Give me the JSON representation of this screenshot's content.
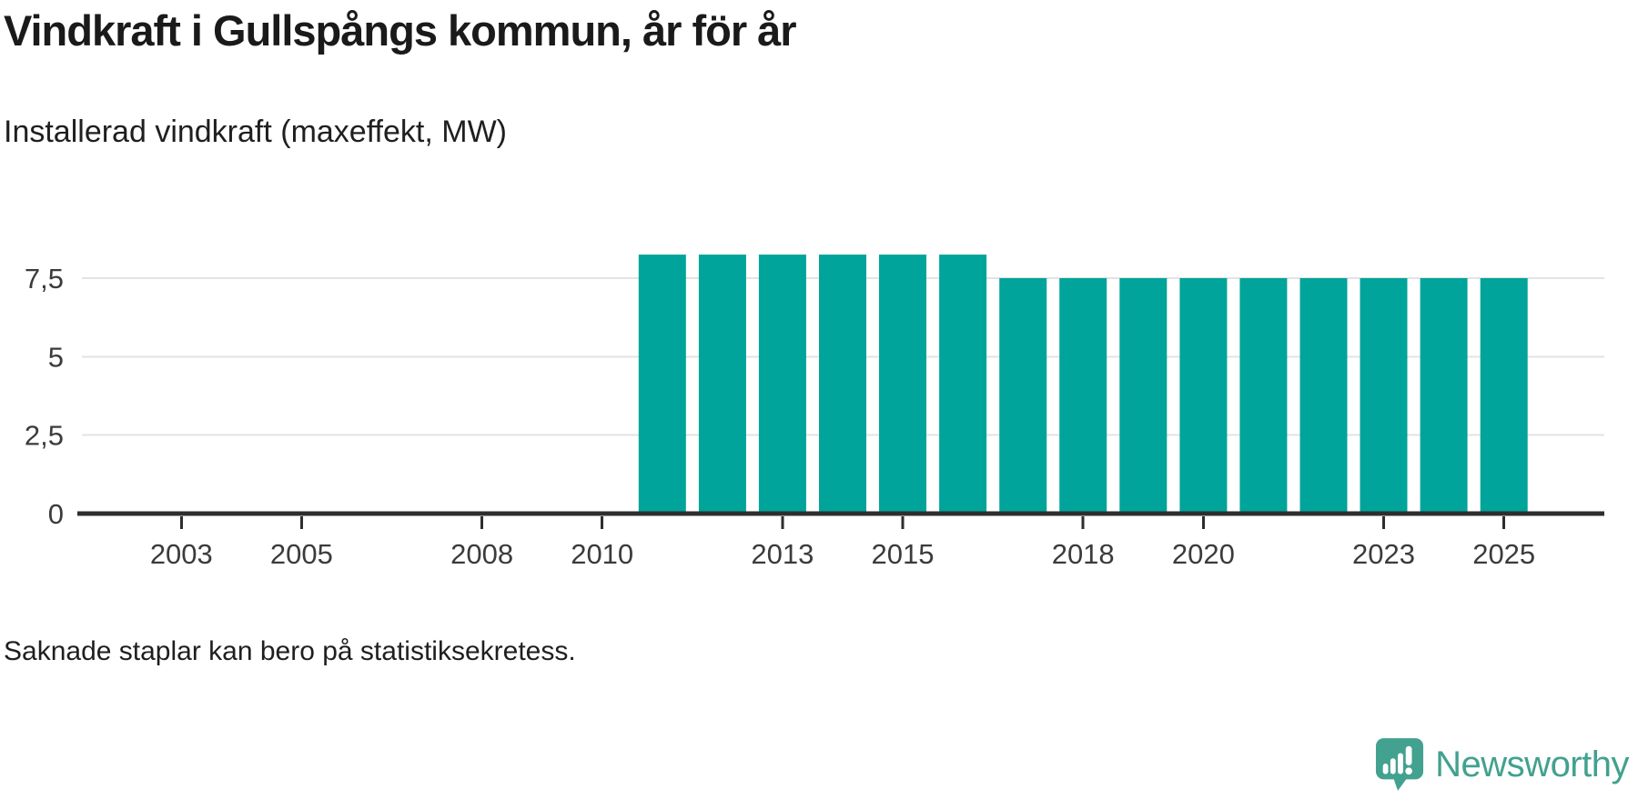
{
  "header": {
    "title": "Vindkraft i Gullspångs kommun, år för år",
    "subtitle": "Installerad vindkraft (maxeffekt, MW)"
  },
  "chart_data": {
    "type": "bar",
    "title": "Vindkraft i Gullspångs kommun, år för år",
    "subtitle": "Installerad vindkraft (maxeffekt, MW)",
    "ylabel": "Installerad vindkraft (maxeffekt, MW)",
    "xlabel": "",
    "unit": "MW",
    "grid": true,
    "legend": "none",
    "years": [
      2011,
      2012,
      2013,
      2014,
      2015,
      2016,
      2017,
      2018,
      2019,
      2020,
      2021,
      2022,
      2023,
      2024,
      2025
    ],
    "values": [
      8.25,
      8.25,
      8.25,
      8.25,
      8.25,
      8.25,
      7.5,
      7.5,
      7.5,
      7.5,
      7.5,
      7.5,
      7.5,
      7.5,
      7.5
    ],
    "years_without_bars": [
      2001,
      2002,
      2003,
      2004,
      2005,
      2006,
      2007,
      2008,
      2009,
      2010
    ],
    "x_ticks": [
      2003,
      2005,
      2008,
      2010,
      2013,
      2015,
      2018,
      2020,
      2023,
      2025
    ],
    "y_ticks": [
      {
        "value": 0,
        "label": "0"
      },
      {
        "value": 2.5,
        "label": "2,5"
      },
      {
        "value": 5,
        "label": "5"
      },
      {
        "value": 7.5,
        "label": "7,5"
      }
    ],
    "xlim": [
      2001.27,
      2026.67
    ],
    "ylim": [
      0,
      9.7
    ],
    "colors": {
      "bar": "#00a49a",
      "grid": "#e3e3e3",
      "axis": "#2e2e2e",
      "tick_text": "#3b3b3b"
    }
  },
  "footer": {
    "note": "Saknade staplar kan bero på statistiksekretess.",
    "brand": "Newsworthy",
    "brand_color": "#42a18f"
  }
}
